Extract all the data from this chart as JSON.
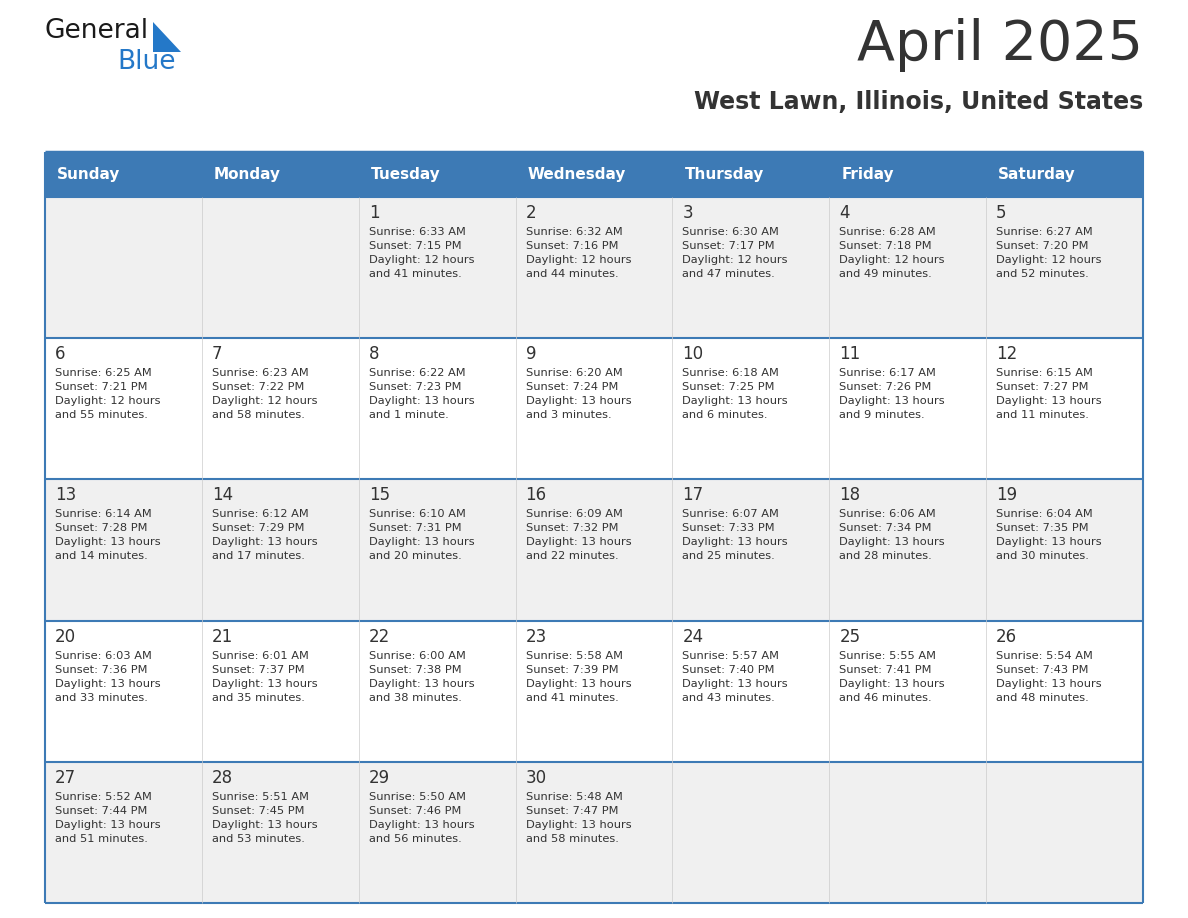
{
  "title": "April 2025",
  "subtitle": "West Lawn, Illinois, United States",
  "header_color": "#3d7ab5",
  "header_text_color": "#ffffff",
  "cell_bg_even": "#f0f0f0",
  "cell_bg_odd": "#ffffff",
  "grid_line_color": "#3d7ab5",
  "text_color": "#333333",
  "days_of_week": [
    "Sunday",
    "Monday",
    "Tuesday",
    "Wednesday",
    "Thursday",
    "Friday",
    "Saturday"
  ],
  "weeks": [
    [
      {
        "day": "",
        "info": ""
      },
      {
        "day": "",
        "info": ""
      },
      {
        "day": "1",
        "info": "Sunrise: 6:33 AM\nSunset: 7:15 PM\nDaylight: 12 hours\nand 41 minutes."
      },
      {
        "day": "2",
        "info": "Sunrise: 6:32 AM\nSunset: 7:16 PM\nDaylight: 12 hours\nand 44 minutes."
      },
      {
        "day": "3",
        "info": "Sunrise: 6:30 AM\nSunset: 7:17 PM\nDaylight: 12 hours\nand 47 minutes."
      },
      {
        "day": "4",
        "info": "Sunrise: 6:28 AM\nSunset: 7:18 PM\nDaylight: 12 hours\nand 49 minutes."
      },
      {
        "day": "5",
        "info": "Sunrise: 6:27 AM\nSunset: 7:20 PM\nDaylight: 12 hours\nand 52 minutes."
      }
    ],
    [
      {
        "day": "6",
        "info": "Sunrise: 6:25 AM\nSunset: 7:21 PM\nDaylight: 12 hours\nand 55 minutes."
      },
      {
        "day": "7",
        "info": "Sunrise: 6:23 AM\nSunset: 7:22 PM\nDaylight: 12 hours\nand 58 minutes."
      },
      {
        "day": "8",
        "info": "Sunrise: 6:22 AM\nSunset: 7:23 PM\nDaylight: 13 hours\nand 1 minute."
      },
      {
        "day": "9",
        "info": "Sunrise: 6:20 AM\nSunset: 7:24 PM\nDaylight: 13 hours\nand 3 minutes."
      },
      {
        "day": "10",
        "info": "Sunrise: 6:18 AM\nSunset: 7:25 PM\nDaylight: 13 hours\nand 6 minutes."
      },
      {
        "day": "11",
        "info": "Sunrise: 6:17 AM\nSunset: 7:26 PM\nDaylight: 13 hours\nand 9 minutes."
      },
      {
        "day": "12",
        "info": "Sunrise: 6:15 AM\nSunset: 7:27 PM\nDaylight: 13 hours\nand 11 minutes."
      }
    ],
    [
      {
        "day": "13",
        "info": "Sunrise: 6:14 AM\nSunset: 7:28 PM\nDaylight: 13 hours\nand 14 minutes."
      },
      {
        "day": "14",
        "info": "Sunrise: 6:12 AM\nSunset: 7:29 PM\nDaylight: 13 hours\nand 17 minutes."
      },
      {
        "day": "15",
        "info": "Sunrise: 6:10 AM\nSunset: 7:31 PM\nDaylight: 13 hours\nand 20 minutes."
      },
      {
        "day": "16",
        "info": "Sunrise: 6:09 AM\nSunset: 7:32 PM\nDaylight: 13 hours\nand 22 minutes."
      },
      {
        "day": "17",
        "info": "Sunrise: 6:07 AM\nSunset: 7:33 PM\nDaylight: 13 hours\nand 25 minutes."
      },
      {
        "day": "18",
        "info": "Sunrise: 6:06 AM\nSunset: 7:34 PM\nDaylight: 13 hours\nand 28 minutes."
      },
      {
        "day": "19",
        "info": "Sunrise: 6:04 AM\nSunset: 7:35 PM\nDaylight: 13 hours\nand 30 minutes."
      }
    ],
    [
      {
        "day": "20",
        "info": "Sunrise: 6:03 AM\nSunset: 7:36 PM\nDaylight: 13 hours\nand 33 minutes."
      },
      {
        "day": "21",
        "info": "Sunrise: 6:01 AM\nSunset: 7:37 PM\nDaylight: 13 hours\nand 35 minutes."
      },
      {
        "day": "22",
        "info": "Sunrise: 6:00 AM\nSunset: 7:38 PM\nDaylight: 13 hours\nand 38 minutes."
      },
      {
        "day": "23",
        "info": "Sunrise: 5:58 AM\nSunset: 7:39 PM\nDaylight: 13 hours\nand 41 minutes."
      },
      {
        "day": "24",
        "info": "Sunrise: 5:57 AM\nSunset: 7:40 PM\nDaylight: 13 hours\nand 43 minutes."
      },
      {
        "day": "25",
        "info": "Sunrise: 5:55 AM\nSunset: 7:41 PM\nDaylight: 13 hours\nand 46 minutes."
      },
      {
        "day": "26",
        "info": "Sunrise: 5:54 AM\nSunset: 7:43 PM\nDaylight: 13 hours\nand 48 minutes."
      }
    ],
    [
      {
        "day": "27",
        "info": "Sunrise: 5:52 AM\nSunset: 7:44 PM\nDaylight: 13 hours\nand 51 minutes."
      },
      {
        "day": "28",
        "info": "Sunrise: 5:51 AM\nSunset: 7:45 PM\nDaylight: 13 hours\nand 53 minutes."
      },
      {
        "day": "29",
        "info": "Sunrise: 5:50 AM\nSunset: 7:46 PM\nDaylight: 13 hours\nand 56 minutes."
      },
      {
        "day": "30",
        "info": "Sunrise: 5:48 AM\nSunset: 7:47 PM\nDaylight: 13 hours\nand 58 minutes."
      },
      {
        "day": "",
        "info": ""
      },
      {
        "day": "",
        "info": ""
      },
      {
        "day": "",
        "info": ""
      }
    ]
  ],
  "logo_text1": "General",
  "logo_text2": "Blue",
  "logo_color1": "#1a1a1a",
  "logo_color2": "#2478c8",
  "fig_width": 11.88,
  "fig_height": 9.18,
  "dpi": 100
}
